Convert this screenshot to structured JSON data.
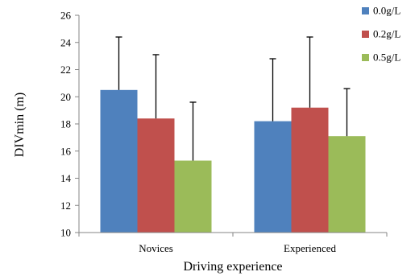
{
  "chart_data": {
    "type": "bar",
    "categories": [
      "Novices",
      "Experienced"
    ],
    "series": [
      {
        "name": "0.0g/L",
        "color": "#4F81BD",
        "values": [
          20.5,
          18.2
        ],
        "error_upper": [
          24.4,
          22.8
        ]
      },
      {
        "name": "0.2g/L",
        "color": "#C0504D",
        "values": [
          18.4,
          19.2
        ],
        "error_upper": [
          23.1,
          24.4
        ]
      },
      {
        "name": "0.5g/L",
        "color": "#9BBB59",
        "values": [
          15.3,
          17.1
        ],
        "error_upper": [
          19.6,
          20.6
        ]
      }
    ],
    "xlabel": "Driving experience",
    "ylabel": "DIVmin (m)",
    "ylim": [
      10,
      26
    ],
    "yticks": [
      "10",
      "12",
      "14",
      "16",
      "18",
      "20",
      "22",
      "24",
      "26"
    ],
    "grid": false,
    "legend": "top-right"
  }
}
